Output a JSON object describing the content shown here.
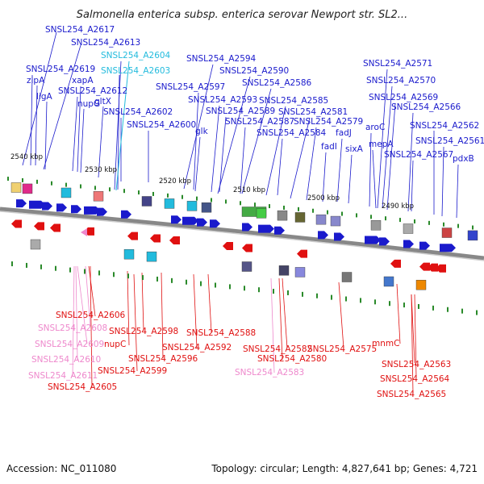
{
  "title": "Salmonella enterica subsp. enterica serovar Newport str. SL2...",
  "footer": {
    "accession": "Accession: NC_011080",
    "summary": "Topology: circular; Length: 4,827,641 bp; Genes: 4,721"
  },
  "scale_ticks": [
    "2540 kbp",
    "2530 kbp",
    "2520 kbp",
    "2510 kbp",
    "2500 kbp",
    "2490 kbp"
  ],
  "colors": {
    "forward_cds": "#1a1acc",
    "reverse_cds": "#e01010",
    "rna_light": "#ee88cc",
    "cyan_feature": "#22bbdd",
    "backbone": "#888888"
  },
  "top_labels": [
    {
      "text": "SNSL254_A2617",
      "color": "#1a1acc"
    },
    {
      "text": "SNSL254_A2613",
      "color": "#1a1acc"
    },
    {
      "text": "SNSL254_A2604",
      "color": "#22bbdd"
    },
    {
      "text": "SNSL254_A2619",
      "color": "#1a1acc"
    },
    {
      "text": "SNSL254_A2603",
      "color": "#22bbdd"
    },
    {
      "text": "zipA",
      "color": "#1a1acc"
    },
    {
      "text": "xapA",
      "color": "#1a1acc"
    },
    {
      "text": "ligA",
      "color": "#1a1acc"
    },
    {
      "text": "SNSL254_A2612",
      "color": "#1a1acc"
    },
    {
      "text": "nupG",
      "color": "#1a1acc"
    },
    {
      "text": "gltX",
      "color": "#1a1acc"
    },
    {
      "text": "SNSL254_A2602",
      "color": "#1a1acc"
    },
    {
      "text": "SNSL254_A2600",
      "color": "#1a1acc"
    },
    {
      "text": "SNSL254_A2594",
      "color": "#1a1acc"
    },
    {
      "text": "SNSL254_A2590",
      "color": "#1a1acc"
    },
    {
      "text": "SNSL254_A2597",
      "color": "#1a1acc"
    },
    {
      "text": "SNSL254_A2586",
      "color": "#1a1acc"
    },
    {
      "text": "SNSL254_A2593",
      "color": "#1a1acc"
    },
    {
      "text": "SNSL254_A2585",
      "color": "#1a1acc"
    },
    {
      "text": "SNSL254_A2589",
      "color": "#1a1acc"
    },
    {
      "text": "SNSL254_A2581",
      "color": "#1a1acc"
    },
    {
      "text": "glk",
      "color": "#1a1acc"
    },
    {
      "text": "SNSL254_A2587",
      "color": "#1a1acc"
    },
    {
      "text": "SNSL254_A2579",
      "color": "#1a1acc"
    },
    {
      "text": "SNSL254_A2584",
      "color": "#1a1acc"
    },
    {
      "text": "fadJ",
      "color": "#1a1acc"
    },
    {
      "text": "fadI",
      "color": "#1a1acc"
    },
    {
      "text": "sixA",
      "color": "#1a1acc"
    },
    {
      "text": "SNSL254_A2571",
      "color": "#1a1acc"
    },
    {
      "text": "SNSL254_A2570",
      "color": "#1a1acc"
    },
    {
      "text": "SNSL254_A2569",
      "color": "#1a1acc"
    },
    {
      "text": "SNSL254_A2566",
      "color": "#1a1acc"
    },
    {
      "text": "aroC",
      "color": "#1a1acc"
    },
    {
      "text": "SNSL254_A2562",
      "color": "#1a1acc"
    },
    {
      "text": "mepA",
      "color": "#1a1acc"
    },
    {
      "text": "SNSL254_A2561",
      "color": "#1a1acc"
    },
    {
      "text": "SNSL254_A2567",
      "color": "#1a1acc"
    },
    {
      "text": "pdxB",
      "color": "#1a1acc"
    }
  ],
  "bottom_labels": [
    {
      "text": "SNSL254_A2606",
      "color": "#e01010"
    },
    {
      "text": "SNSL254_A2608",
      "color": "#ee88cc"
    },
    {
      "text": "SNSL254_A2598",
      "color": "#e01010"
    },
    {
      "text": "SNSL254_A2588",
      "color": "#e01010"
    },
    {
      "text": "SNSL254_A2609",
      "color": "#ee88cc"
    },
    {
      "text": "nupC",
      "color": "#e01010"
    },
    {
      "text": "SNSL254_A2592",
      "color": "#e01010"
    },
    {
      "text": "SNSL254_A2582",
      "color": "#e01010"
    },
    {
      "text": "SNSL254_A2575",
      "color": "#e01010"
    },
    {
      "text": "mnmC",
      "color": "#e01010"
    },
    {
      "text": "SNSL254_A2610",
      "color": "#ee88cc"
    },
    {
      "text": "SNSL254_A2596",
      "color": "#e01010"
    },
    {
      "text": "SNSL254_A2580",
      "color": "#e01010"
    },
    {
      "text": "SNSL254_A2563",
      "color": "#e01010"
    },
    {
      "text": "SNSL254_A2599",
      "color": "#e01010"
    },
    {
      "text": "SNSL254_A2583",
      "color": "#ee88cc"
    },
    {
      "text": "SNSL254_A2611",
      "color": "#ee88cc"
    },
    {
      "text": "SNSL254_A2564",
      "color": "#e01010"
    },
    {
      "text": "SNSL254_A2605",
      "color": "#e01010"
    },
    {
      "text": "SNSL254_A2565",
      "color": "#e01010"
    }
  ]
}
